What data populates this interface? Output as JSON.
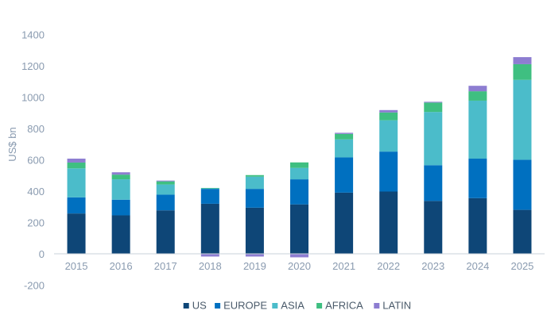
{
  "chart_data": {
    "type": "bar",
    "stacked": true,
    "title": "",
    "xlabel": "",
    "ylabel": "US$ bn",
    "ylim": [
      -200,
      1400
    ],
    "yticks": [
      -200,
      0,
      200,
      400,
      600,
      800,
      1000,
      1200,
      1400
    ],
    "grid": false,
    "legend_position": "bottom",
    "categories": [
      "2015",
      "2016",
      "2017",
      "2018",
      "2019",
      "2020",
      "2021",
      "2022",
      "2023",
      "2024",
      "2025"
    ],
    "series": [
      {
        "name": "US",
        "color": "#0e4677",
        "values": [
          260,
          248,
          280,
          322,
          297,
          318,
          393,
          400,
          340,
          358,
          283
        ]
      },
      {
        "name": "EUROPE",
        "color": "#0070c0",
        "values": [
          103,
          100,
          100,
          95,
          120,
          160,
          225,
          255,
          228,
          252,
          320
        ]
      },
      {
        "name": "ASIA",
        "color": "#4bbcca",
        "values": [
          185,
          130,
          65,
          3,
          78,
          73,
          115,
          200,
          340,
          370,
          510
        ]
      },
      {
        "name": "AFRICA",
        "color": "#3fbf81",
        "values": [
          37,
          30,
          20,
          3,
          10,
          35,
          35,
          50,
          60,
          60,
          100
        ]
      },
      {
        "name": "LATIN",
        "color": "#8d7dd1",
        "values": [
          25,
          15,
          5,
          -15,
          -15,
          -20,
          7,
          15,
          5,
          35,
          45
        ]
      }
    ]
  }
}
